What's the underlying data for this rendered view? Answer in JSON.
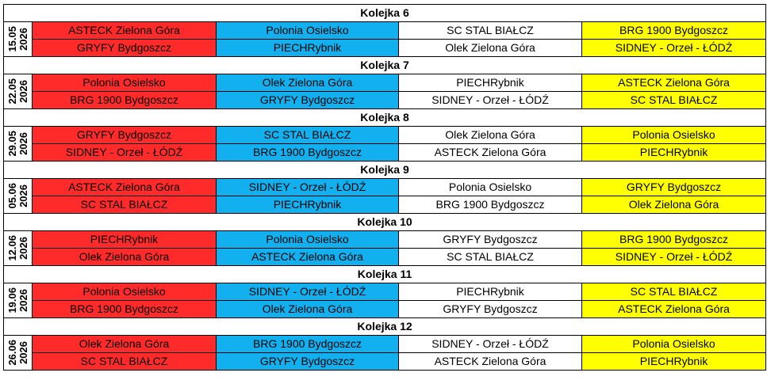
{
  "colors": {
    "red": "#ff2b2b",
    "blue": "#13b0ef",
    "white": "#ffffff",
    "yellow": "#ffff00"
  },
  "rounds": [
    {
      "title": "Kolejka 6",
      "date": "15.05",
      "year": "2026",
      "rows": [
        [
          "ASTECK Zielona Góra",
          "Polonia Osielsko",
          "SC STAL BIAŁCZ",
          "BRG 1900 Bydgoszcz"
        ],
        [
          "GRYFY Bydgoszcz",
          "PIECHRybnik",
          "Olek Zielona Góra",
          "SIDNEY - Orzeł - ŁÓDŹ"
        ]
      ]
    },
    {
      "title": "Kolejka 7",
      "date": "22.05",
      "year": "2026",
      "rows": [
        [
          "Polonia Osielsko",
          "Olek Zielona Góra",
          "PIECHRybnik",
          "ASTECK Zielona Góra"
        ],
        [
          "BRG 1900 Bydgoszcz",
          "GRYFY Bydgoszcz",
          "SIDNEY - Orzeł - ŁÓDŹ",
          "SC STAL BIAŁCZ"
        ]
      ]
    },
    {
      "title": "Kolejka 8",
      "date": "29.05",
      "year": "2026",
      "rows": [
        [
          "GRYFY Bydgoszcz",
          "SC STAL BIAŁCZ",
          "Olek Zielona Góra",
          "Polonia Osielsko"
        ],
        [
          "SIDNEY - Orzeł - ŁÓDŹ",
          "BRG 1900 Bydgoszcz",
          "ASTECK Zielona Góra",
          "PIECHRybnik"
        ]
      ]
    },
    {
      "title": "Kolejka 9",
      "date": "05.06",
      "year": "2026",
      "rows": [
        [
          "ASTECK Zielona Góra",
          "SIDNEY - Orzeł - ŁÓDŹ",
          "Polonia Osielsko",
          "GRYFY Bydgoszcz"
        ],
        [
          "SC STAL BIAŁCZ",
          "PIECHRybnik",
          "BRG 1900 Bydgoszcz",
          "Olek Zielona Góra"
        ]
      ]
    },
    {
      "title": "Kolejka 10",
      "date": "12.06",
      "year": "2026",
      "rows": [
        [
          "PIECHRybnik",
          "Polonia Osielsko",
          "GRYFY Bydgoszcz",
          "BRG 1900 Bydgoszcz"
        ],
        [
          "Olek Zielona Góra",
          "ASTECK Zielona Góra",
          "SC STAL BIAŁCZ",
          "SIDNEY - Orzeł - ŁÓDŹ"
        ]
      ]
    },
    {
      "title": "Kolejka 11",
      "date": "19.06",
      "year": "2026",
      "rows": [
        [
          "Polonia Osielsko",
          "SIDNEY - Orzeł - ŁÓDŹ",
          "PIECHRybnik",
          "SC STAL BIAŁCZ"
        ],
        [
          "BRG 1900 Bydgoszcz",
          "Olek Zielona Góra",
          "GRYFY Bydgoszcz",
          "ASTECK Zielona Góra"
        ]
      ]
    },
    {
      "title": "Kolejka 12",
      "date": "26.06",
      "year": "2026",
      "rows": [
        [
          "Olek Zielona Góra",
          "BRG 1900 Bydgoszcz",
          "SIDNEY - Orzeł - ŁÓDŹ",
          "Polonia Osielsko"
        ],
        [
          "SC STAL BIAŁCZ",
          "GRYFY Bydgoszcz",
          "ASTECK Zielona Góra",
          "PIECHRybnik"
        ]
      ]
    }
  ]
}
